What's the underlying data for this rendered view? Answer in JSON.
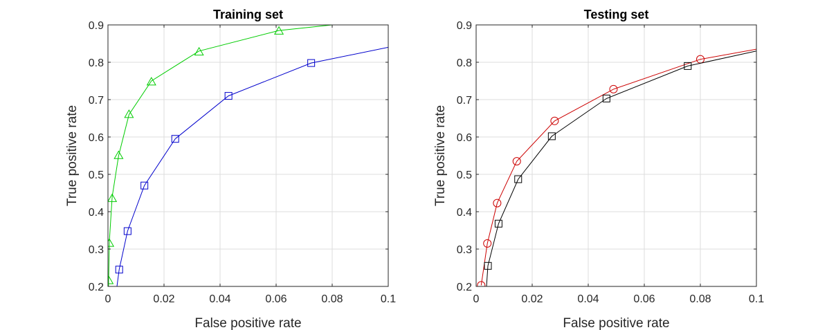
{
  "chart_data": [
    {
      "type": "line",
      "title": "Training set",
      "xlabel": "False positive rate",
      "ylabel": "True positive rate",
      "xlim": [
        0,
        0.1
      ],
      "ylim": [
        0.2,
        0.9
      ],
      "x_ticks": [
        0,
        0.02,
        0.04,
        0.06,
        0.08,
        0.1
      ],
      "x_tick_labels": [
        "0",
        "0.02",
        "0.04",
        "0.06",
        "0.08",
        "0.1"
      ],
      "y_ticks": [
        0.2,
        0.3,
        0.4,
        0.5,
        0.6,
        0.7,
        0.8,
        0.9
      ],
      "y_tick_labels": [
        "0.2",
        "0.3",
        "0.4",
        "0.5",
        "0.6",
        "0.7",
        "0.8",
        "0.9"
      ],
      "grid": true,
      "legend": false,
      "series": [
        {
          "color": "#00cc00",
          "marker": "triangle",
          "line_x": [
            0.0002,
            0.0005,
            0.0015,
            0.0038,
            0.0075,
            0.0155,
            0.0325,
            0.061,
            0.08
          ],
          "line_y": [
            0.2,
            0.32,
            0.44,
            0.55,
            0.66,
            0.75,
            0.83,
            0.885,
            0.9
          ],
          "marker_x": [
            0.0003,
            0.0005,
            0.0015,
            0.0038,
            0.0075,
            0.0155,
            0.0325,
            0.061
          ],
          "marker_y": [
            0.215,
            0.315,
            0.435,
            0.55,
            0.66,
            0.747,
            0.827,
            0.883
          ]
        },
        {
          "color": "#0000cc",
          "marker": "square",
          "line_x": [
            0.0032,
            0.004,
            0.007,
            0.013,
            0.024,
            0.043,
            0.0725,
            0.1
          ],
          "line_y": [
            0.2,
            0.245,
            0.348,
            0.47,
            0.595,
            0.71,
            0.798,
            0.84
          ],
          "marker_x": [
            0.004,
            0.007,
            0.013,
            0.024,
            0.043,
            0.0725
          ],
          "marker_y": [
            0.245,
            0.348,
            0.47,
            0.595,
            0.71,
            0.798
          ]
        }
      ]
    },
    {
      "type": "line",
      "title": "Testing set",
      "xlabel": "False positive rate",
      "ylabel": "True positive rate",
      "xlim": [
        0,
        0.1
      ],
      "ylim": [
        0.2,
        0.9
      ],
      "x_ticks": [
        0,
        0.02,
        0.04,
        0.06,
        0.08,
        0.1
      ],
      "x_tick_labels": [
        "0",
        "0.02",
        "0.04",
        "0.06",
        "0.08",
        "0.1"
      ],
      "y_ticks": [
        0.2,
        0.3,
        0.4,
        0.5,
        0.6,
        0.7,
        0.8,
        0.9
      ],
      "y_tick_labels": [
        "0.2",
        "0.3",
        "0.4",
        "0.5",
        "0.6",
        "0.7",
        "0.8",
        "0.9"
      ],
      "grid": true,
      "legend": false,
      "series": [
        {
          "color": "#cc0000",
          "marker": "circle",
          "line_x": [
            0.0018,
            0.004,
            0.0075,
            0.0145,
            0.028,
            0.049,
            0.08,
            0.1
          ],
          "line_y": [
            0.203,
            0.315,
            0.423,
            0.535,
            0.643,
            0.728,
            0.808,
            0.835
          ],
          "marker_x": [
            0.0018,
            0.004,
            0.0075,
            0.0145,
            0.028,
            0.049,
            0.08
          ],
          "marker_y": [
            0.203,
            0.315,
            0.423,
            0.535,
            0.643,
            0.728,
            0.808
          ]
        },
        {
          "color": "#000000",
          "marker": "square",
          "line_x": [
            0.0037,
            0.0042,
            0.008,
            0.015,
            0.027,
            0.0465,
            0.0755,
            0.1
          ],
          "line_y": [
            0.2,
            0.255,
            0.368,
            0.487,
            0.602,
            0.703,
            0.79,
            0.83
          ],
          "marker_x": [
            0.0042,
            0.008,
            0.015,
            0.027,
            0.0465,
            0.0755
          ],
          "marker_y": [
            0.255,
            0.368,
            0.487,
            0.602,
            0.703,
            0.79
          ]
        }
      ]
    }
  ]
}
